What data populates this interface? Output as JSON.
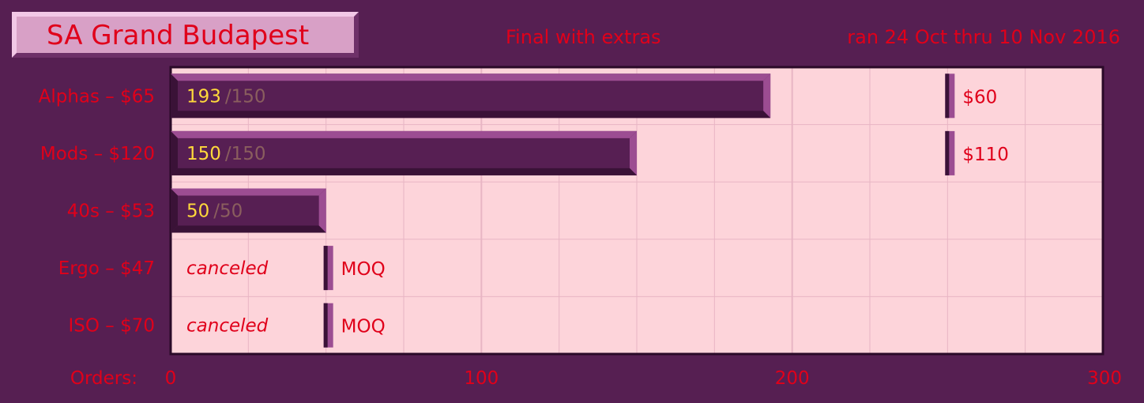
{
  "header": {
    "title": "SA Grand Budapest",
    "subtitle": "Final with extras",
    "date_range": "ran 24 Oct thru 10 Nov 2016"
  },
  "colors": {
    "background": "#561f52",
    "plot_bg": "#fdd4da",
    "grid": "#e8b5c4",
    "bar_fill": "#571f53",
    "bar_light": "#9c4d92",
    "bar_dark": "#3a1237",
    "label_red": "#e0001a",
    "value_yellow": "#ffd93b",
    "target_gray": "#8a5e5e"
  },
  "chart_data": {
    "type": "bar",
    "orientation": "horizontal",
    "title": "SA Grand Budapest",
    "subtitle": "Final with extras",
    "xlabel": "Orders:",
    "xlim": [
      0,
      300
    ],
    "xticks": [
      "0",
      "100",
      "200",
      "300"
    ],
    "grid": true,
    "categories": [
      "Alphas – $65",
      "Mods – $120",
      "40s – $53",
      "Ergo – $47",
      "ISO – $70"
    ],
    "values": [
      193,
      150,
      50,
      null,
      null
    ],
    "targets": [
      150,
      150,
      50,
      null,
      null
    ],
    "value_labels": [
      "193",
      "150",
      "50",
      "",
      ""
    ],
    "target_labels": [
      "/150",
      "/150",
      "/50",
      "",
      ""
    ],
    "status_labels": [
      "",
      "",
      "",
      "canceled",
      "canceled"
    ],
    "markers": [
      {
        "row": 0,
        "x": 250,
        "label": "$60"
      },
      {
        "row": 1,
        "x": 250,
        "label": "$110"
      },
      {
        "row": 3,
        "x": 50,
        "label": "MOQ"
      },
      {
        "row": 4,
        "x": 50,
        "label": "MOQ"
      }
    ]
  }
}
